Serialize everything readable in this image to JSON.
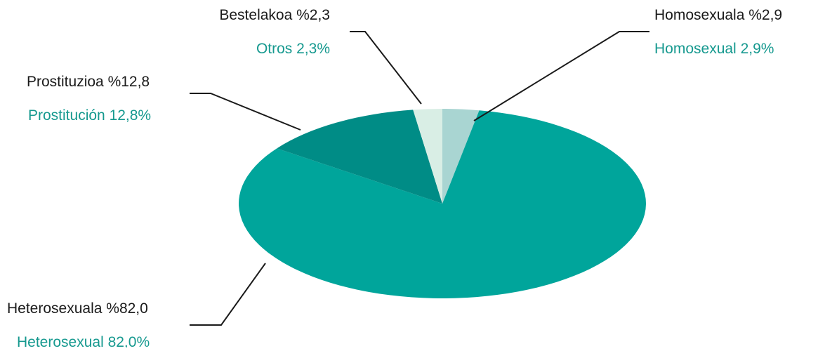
{
  "chart_data": {
    "type": "pie",
    "categories": [
      "Homosexuala",
      "Heterosexuala",
      "Prostituzioa",
      "Bestelakoa"
    ],
    "categories_es": [
      "Homosexual",
      "Heterosexual",
      "Prostitución",
      "Otros"
    ],
    "values": [
      2.9,
      82.0,
      12.8,
      2.3
    ],
    "value_labels": [
      "%2,9",
      "%82,0",
      "%12,8",
      "%2,3"
    ],
    "value_labels_es": [
      "2,9%",
      "82,0%",
      "12,8%",
      "2,3%"
    ],
    "colors": [
      "#a9d5d2",
      "#00a59b",
      "#008c86",
      "#d9eee5"
    ]
  }
}
